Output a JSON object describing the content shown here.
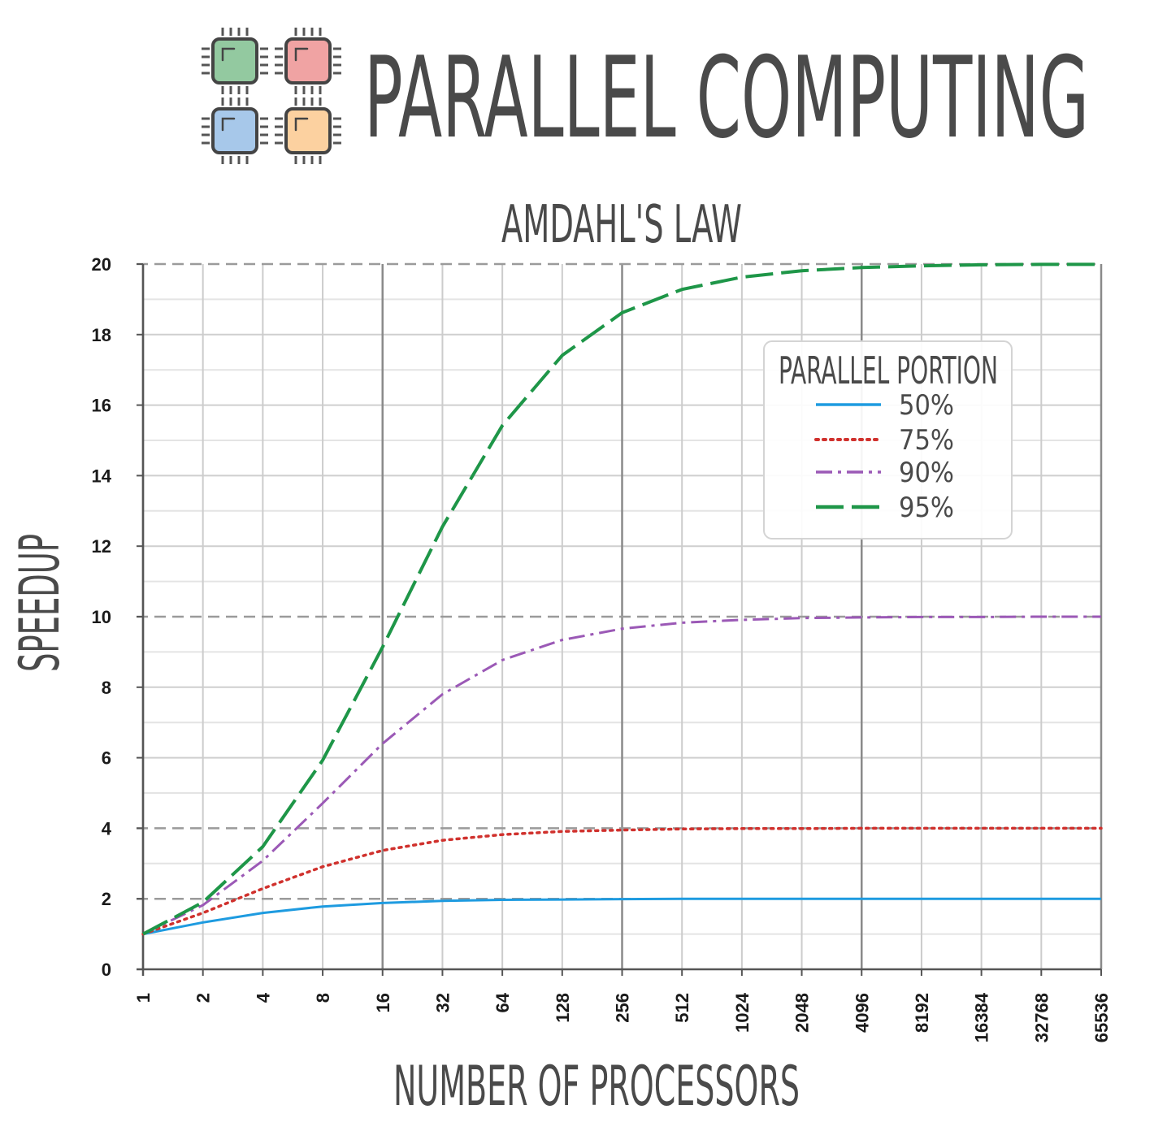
{
  "header": {
    "title": "PARALLEL COMPUTING",
    "logo": {
      "name": "quad-core-chip-logo",
      "chip_colors": [
        "#93c9a0",
        "#f0a3a3",
        "#a7c8ea",
        "#fcd1a0"
      ]
    }
  },
  "chart_data": {
    "type": "line",
    "title": "AMDAHL'S LAW",
    "xlabel": "NUMBER OF PROCESSORS",
    "ylabel": "SPEEDUP",
    "x_scale": "log2",
    "x": [
      1,
      2,
      4,
      8,
      16,
      32,
      64,
      128,
      256,
      512,
      1024,
      2048,
      4096,
      8192,
      16384,
      32768,
      65536
    ],
    "x_tick_labels": [
      "1",
      "2",
      "4",
      "8",
      "16",
      "32",
      "64",
      "128",
      "256",
      "512",
      "1024",
      "2048",
      "4096",
      "8192",
      "16384",
      "32768",
      "65536"
    ],
    "ylim": [
      0,
      20
    ],
    "y_ticks": [
      0,
      2,
      4,
      6,
      8,
      10,
      12,
      14,
      16,
      18,
      20
    ],
    "y_tick_labels": [
      "0",
      "2",
      "4",
      "6",
      "8",
      "10",
      "12",
      "14",
      "16",
      "18",
      "20"
    ],
    "grid": true,
    "dashed_reference_lines": [
      2,
      4,
      10,
      20
    ],
    "legend": {
      "title": "PARALLEL PORTION",
      "placement": "upper-right"
    },
    "series": [
      {
        "name": "50%",
        "color": "#1e9be0",
        "style": "solid",
        "values": [
          1.0,
          1.33,
          1.6,
          1.78,
          1.88,
          1.94,
          1.97,
          1.98,
          1.99,
          2.0,
          2.0,
          2.0,
          2.0,
          2.0,
          2.0,
          2.0,
          2.0
        ]
      },
      {
        "name": "75%",
        "color": "#d0312d",
        "style": "dotted",
        "values": [
          1.0,
          1.6,
          2.29,
          2.91,
          3.37,
          3.66,
          3.82,
          3.91,
          3.95,
          3.98,
          3.99,
          3.99,
          4.0,
          4.0,
          4.0,
          4.0,
          4.0
        ]
      },
      {
        "name": "90%",
        "color": "#9b59b6",
        "style": "dash-dot",
        "values": [
          1.0,
          1.82,
          3.08,
          4.71,
          6.4,
          7.8,
          8.77,
          9.34,
          9.66,
          9.83,
          9.91,
          9.96,
          9.98,
          9.99,
          9.99,
          10.0,
          10.0
        ]
      },
      {
        "name": "95%",
        "color": "#1e9648",
        "style": "dashed",
        "values": [
          1.0,
          1.9,
          3.48,
          5.93,
          9.14,
          12.55,
          15.42,
          17.41,
          18.62,
          19.28,
          19.63,
          19.81,
          19.9,
          19.95,
          19.98,
          19.99,
          19.99
        ]
      }
    ]
  }
}
